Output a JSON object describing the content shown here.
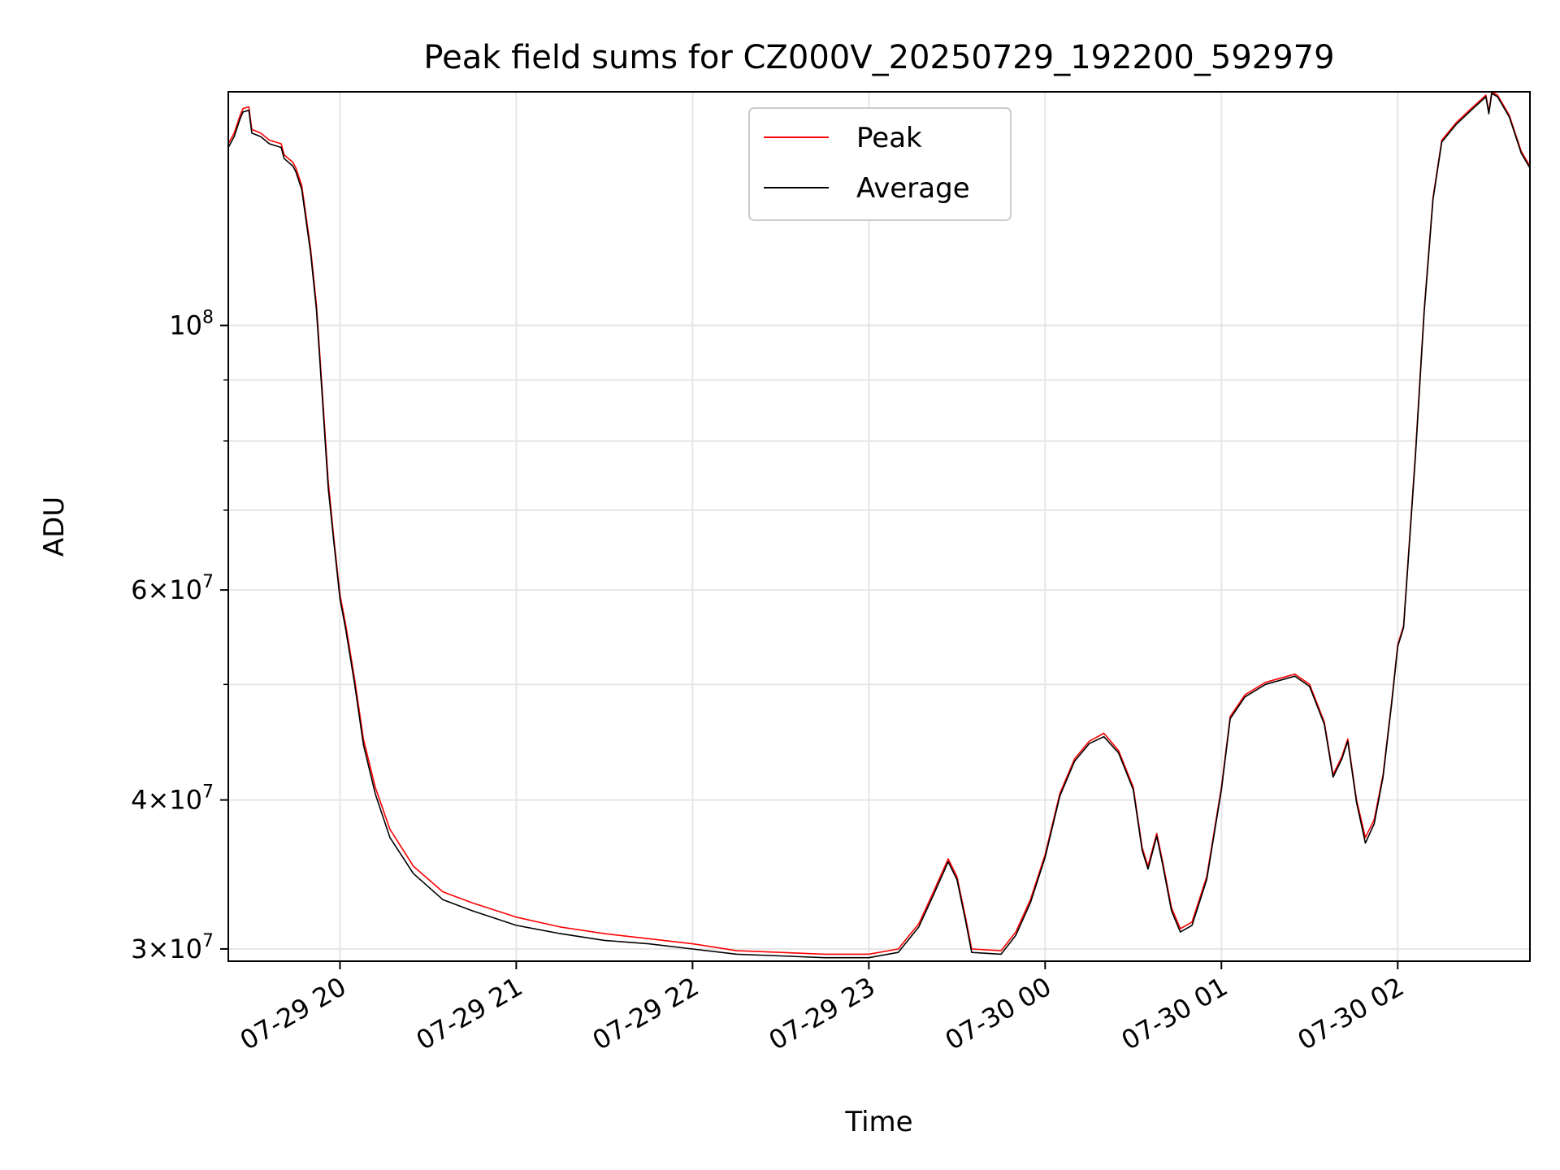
{
  "chart_data": {
    "type": "line",
    "title": "Peak field sums for CZ000V_20250729_192200_592979",
    "xlabel": "Time",
    "ylabel": "ADU",
    "yscale": "log",
    "xlim": [
      "2025-07-29 19:22",
      "2025-07-30 02:45"
    ],
    "ylim": [
      29300000,
      157000000
    ],
    "grid": true,
    "legend_position": "top-center",
    "x_ticks": [
      {
        "value": "2025-07-29 20:00",
        "label": "07-29 20"
      },
      {
        "value": "2025-07-29 21:00",
        "label": "07-29 21"
      },
      {
        "value": "2025-07-29 22:00",
        "label": "07-29 22"
      },
      {
        "value": "2025-07-29 23:00",
        "label": "07-29 23"
      },
      {
        "value": "2025-07-30 00:00",
        "label": "07-30 00"
      },
      {
        "value": "2025-07-30 01:00",
        "label": "07-30 01"
      },
      {
        "value": "2025-07-30 02:00",
        "label": "07-30 02"
      }
    ],
    "y_ticks": [
      {
        "value": 30000000,
        "base": "3×10",
        "exp": "7"
      },
      {
        "value": 40000000,
        "base": "4×10",
        "exp": "7"
      },
      {
        "value": 60000000,
        "base": "6×10",
        "exp": "7"
      },
      {
        "value": 100000000,
        "base": "10",
        "exp": "8"
      }
    ],
    "y_minor_ticks": [
      50000000,
      70000000,
      80000000,
      90000000
    ],
    "series": [
      {
        "name": "Peak",
        "color": "#ff0000",
        "points": [
          [
            "2025-07-29 19:22",
            142000000
          ],
          [
            "2025-07-29 19:24",
            145000000
          ],
          [
            "2025-07-29 19:26",
            150000000
          ],
          [
            "2025-07-29 19:27",
            152000000
          ],
          [
            "2025-07-29 19:29",
            152500000
          ],
          [
            "2025-07-29 19:30",
            146000000
          ],
          [
            "2025-07-29 19:33",
            145000000
          ],
          [
            "2025-07-29 19:36",
            143000000
          ],
          [
            "2025-07-29 19:40",
            142000000
          ],
          [
            "2025-07-29 19:41",
            139000000
          ],
          [
            "2025-07-29 19:44",
            137000000
          ],
          [
            "2025-07-29 19:45",
            135500000
          ],
          [
            "2025-07-29 19:47",
            131000000
          ],
          [
            "2025-07-29 19:50",
            116000000
          ],
          [
            "2025-07-29 19:52",
            104000000
          ],
          [
            "2025-07-29 19:54",
            88000000
          ],
          [
            "2025-07-29 19:56",
            74000000
          ],
          [
            "2025-07-29 19:58",
            66000000
          ],
          [
            "2025-07-29 20:00",
            59500000
          ],
          [
            "2025-07-29 20:02",
            56000000
          ],
          [
            "2025-07-29 20:05",
            50500000
          ],
          [
            "2025-07-29 20:08",
            45000000
          ],
          [
            "2025-07-29 20:12",
            41000000
          ],
          [
            "2025-07-29 20:17",
            37800000
          ],
          [
            "2025-07-29 20:25",
            35200000
          ],
          [
            "2025-07-29 20:35",
            33500000
          ],
          [
            "2025-07-29 20:45",
            32800000
          ],
          [
            "2025-07-29 21:00",
            31900000
          ],
          [
            "2025-07-29 21:15",
            31300000
          ],
          [
            "2025-07-29 21:30",
            30900000
          ],
          [
            "2025-07-29 21:45",
            30600000
          ],
          [
            "2025-07-29 22:00",
            30300000
          ],
          [
            "2025-07-29 22:15",
            29900000
          ],
          [
            "2025-07-29 22:30",
            29800000
          ],
          [
            "2025-07-29 22:45",
            29700000
          ],
          [
            "2025-07-29 23:00",
            29700000
          ],
          [
            "2025-07-29 23:10",
            30000000
          ],
          [
            "2025-07-29 23:17",
            31500000
          ],
          [
            "2025-07-29 23:22",
            33500000
          ],
          [
            "2025-07-29 23:27",
            35700000
          ],
          [
            "2025-07-29 23:30",
            34500000
          ],
          [
            "2025-07-29 23:33",
            31800000
          ],
          [
            "2025-07-29 23:35",
            30000000
          ],
          [
            "2025-07-29 23:45",
            29900000
          ],
          [
            "2025-07-29 23:50",
            31000000
          ],
          [
            "2025-07-29 23:55",
            33000000
          ],
          [
            "2025-07-30 00:00",
            36000000
          ],
          [
            "2025-07-30 00:05",
            40500000
          ],
          [
            "2025-07-30 00:10",
            43300000
          ],
          [
            "2025-07-30 00:15",
            44800000
          ],
          [
            "2025-07-30 00:20",
            45500000
          ],
          [
            "2025-07-30 00:25",
            44000000
          ],
          [
            "2025-07-30 00:30",
            41000000
          ],
          [
            "2025-07-30 00:33",
            36500000
          ],
          [
            "2025-07-30 00:35",
            35200000
          ],
          [
            "2025-07-30 00:38",
            37500000
          ],
          [
            "2025-07-30 00:40",
            35500000
          ],
          [
            "2025-07-30 00:43",
            32500000
          ],
          [
            "2025-07-30 00:46",
            31200000
          ],
          [
            "2025-07-30 00:50",
            31600000
          ],
          [
            "2025-07-30 00:55",
            34500000
          ],
          [
            "2025-07-30 01:00",
            41000000
          ],
          [
            "2025-07-30 01:03",
            47000000
          ],
          [
            "2025-07-30 01:08",
            49000000
          ],
          [
            "2025-07-30 01:15",
            50200000
          ],
          [
            "2025-07-30 01:25",
            51000000
          ],
          [
            "2025-07-30 01:30",
            50000000
          ],
          [
            "2025-07-30 01:35",
            46500000
          ],
          [
            "2025-07-30 01:38",
            42000000
          ],
          [
            "2025-07-30 01:41",
            43500000
          ],
          [
            "2025-07-30 01:43",
            45000000
          ],
          [
            "2025-07-30 01:46",
            40000000
          ],
          [
            "2025-07-30 01:49",
            37200000
          ],
          [
            "2025-07-30 01:52",
            38500000
          ],
          [
            "2025-07-30 01:55",
            42000000
          ],
          [
            "2025-07-30 01:58",
            48500000
          ],
          [
            "2025-07-30 02:00",
            54000000
          ],
          [
            "2025-07-30 02:02",
            56000000
          ],
          [
            "2025-07-30 02:06",
            78000000
          ],
          [
            "2025-07-30 02:09",
            103000000
          ],
          [
            "2025-07-30 02:12",
            128000000
          ],
          [
            "2025-07-30 02:15",
            143000000
          ],
          [
            "2025-07-30 02:20",
            148000000
          ],
          [
            "2025-07-30 02:25",
            152000000
          ],
          [
            "2025-07-30 02:30",
            156000000
          ],
          [
            "2025-07-30 02:31",
            151000000
          ],
          [
            "2025-07-30 02:32",
            157000000
          ],
          [
            "2025-07-30 02:34",
            156000000
          ],
          [
            "2025-07-30 02:38",
            150000000
          ],
          [
            "2025-07-30 02:42",
            140000000
          ],
          [
            "2025-07-30 02:45",
            136000000
          ]
        ]
      },
      {
        "name": "Average",
        "color": "#000000",
        "points": [
          [
            "2025-07-29 19:22",
            141000000
          ],
          [
            "2025-07-29 19:24",
            144000000
          ],
          [
            "2025-07-29 19:26",
            149000000
          ],
          [
            "2025-07-29 19:27",
            151000000
          ],
          [
            "2025-07-29 19:29",
            151500000
          ],
          [
            "2025-07-29 19:30",
            145000000
          ],
          [
            "2025-07-29 19:33",
            144000000
          ],
          [
            "2025-07-29 19:36",
            142000000
          ],
          [
            "2025-07-29 19:40",
            141000000
          ],
          [
            "2025-07-29 19:41",
            138000000
          ],
          [
            "2025-07-29 19:44",
            136000000
          ],
          [
            "2025-07-29 19:45",
            134500000
          ],
          [
            "2025-07-29 19:47",
            130000000
          ],
          [
            "2025-07-29 19:50",
            115000000
          ],
          [
            "2025-07-29 19:52",
            103000000
          ],
          [
            "2025-07-29 19:54",
            87000000
          ],
          [
            "2025-07-29 19:56",
            73000000
          ],
          [
            "2025-07-29 19:58",
            65500000
          ],
          [
            "2025-07-29 20:00",
            59000000
          ],
          [
            "2025-07-29 20:02",
            55500000
          ],
          [
            "2025-07-29 20:05",
            50000000
          ],
          [
            "2025-07-29 20:08",
            44500000
          ],
          [
            "2025-07-29 20:12",
            40500000
          ],
          [
            "2025-07-29 20:17",
            37200000
          ],
          [
            "2025-07-29 20:25",
            34700000
          ],
          [
            "2025-07-29 20:35",
            33000000
          ],
          [
            "2025-07-29 20:45",
            32300000
          ],
          [
            "2025-07-29 21:00",
            31400000
          ],
          [
            "2025-07-29 21:15",
            30900000
          ],
          [
            "2025-07-29 21:30",
            30500000
          ],
          [
            "2025-07-29 21:45",
            30300000
          ],
          [
            "2025-07-29 22:00",
            30000000
          ],
          [
            "2025-07-29 22:15",
            29700000
          ],
          [
            "2025-07-29 22:30",
            29600000
          ],
          [
            "2025-07-29 22:45",
            29500000
          ],
          [
            "2025-07-29 23:00",
            29500000
          ],
          [
            "2025-07-29 23:10",
            29800000
          ],
          [
            "2025-07-29 23:17",
            31300000
          ],
          [
            "2025-07-29 23:22",
            33300000
          ],
          [
            "2025-07-29 23:27",
            35500000
          ],
          [
            "2025-07-29 23:30",
            34300000
          ],
          [
            "2025-07-29 23:33",
            31600000
          ],
          [
            "2025-07-29 23:35",
            29800000
          ],
          [
            "2025-07-29 23:45",
            29700000
          ],
          [
            "2025-07-29 23:50",
            30800000
          ],
          [
            "2025-07-29 23:55",
            32800000
          ],
          [
            "2025-07-30 00:00",
            35800000
          ],
          [
            "2025-07-30 00:05",
            40300000
          ],
          [
            "2025-07-30 00:10",
            43100000
          ],
          [
            "2025-07-30 00:15",
            44600000
          ],
          [
            "2025-07-30 00:20",
            45200000
          ],
          [
            "2025-07-30 00:25",
            43800000
          ],
          [
            "2025-07-30 00:30",
            40800000
          ],
          [
            "2025-07-30 00:33",
            36300000
          ],
          [
            "2025-07-30 00:35",
            35000000
          ],
          [
            "2025-07-30 00:38",
            37300000
          ],
          [
            "2025-07-30 00:40",
            35300000
          ],
          [
            "2025-07-30 00:43",
            32300000
          ],
          [
            "2025-07-30 00:46",
            31000000
          ],
          [
            "2025-07-30 00:50",
            31400000
          ],
          [
            "2025-07-30 00:55",
            34300000
          ],
          [
            "2025-07-30 01:00",
            40800000
          ],
          [
            "2025-07-30 01:03",
            46800000
          ],
          [
            "2025-07-30 01:08",
            48800000
          ],
          [
            "2025-07-30 01:15",
            50000000
          ],
          [
            "2025-07-30 01:25",
            50800000
          ],
          [
            "2025-07-30 01:30",
            49800000
          ],
          [
            "2025-07-30 01:35",
            46300000
          ],
          [
            "2025-07-30 01:38",
            41800000
          ],
          [
            "2025-07-30 01:41",
            43300000
          ],
          [
            "2025-07-30 01:43",
            44800000
          ],
          [
            "2025-07-30 01:46",
            39800000
          ],
          [
            "2025-07-30 01:49",
            36800000
          ],
          [
            "2025-07-30 01:52",
            38200000
          ],
          [
            "2025-07-30 01:55",
            41800000
          ],
          [
            "2025-07-30 01:58",
            48300000
          ],
          [
            "2025-07-30 02:00",
            53800000
          ],
          [
            "2025-07-30 02:02",
            55800000
          ],
          [
            "2025-07-30 02:06",
            77500000
          ],
          [
            "2025-07-30 02:09",
            102500000
          ],
          [
            "2025-07-30 02:12",
            127500000
          ],
          [
            "2025-07-30 02:15",
            142500000
          ],
          [
            "2025-07-30 02:20",
            147500000
          ],
          [
            "2025-07-30 02:25",
            151500000
          ],
          [
            "2025-07-30 02:30",
            155500000
          ],
          [
            "2025-07-30 02:31",
            150500000
          ],
          [
            "2025-07-30 02:32",
            156500000
          ],
          [
            "2025-07-30 02:34",
            155500000
          ],
          [
            "2025-07-30 02:38",
            149500000
          ],
          [
            "2025-07-30 02:42",
            139500000
          ],
          [
            "2025-07-30 02:45",
            135500000
          ]
        ]
      }
    ]
  }
}
